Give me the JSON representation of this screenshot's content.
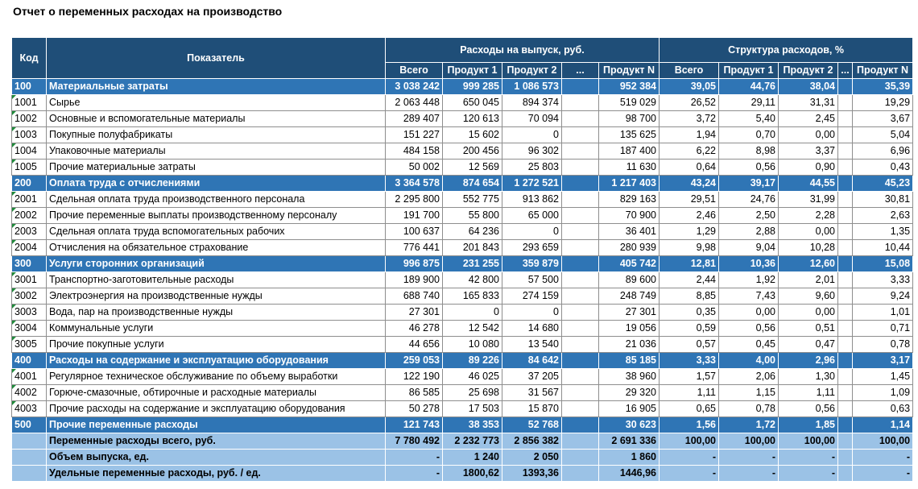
{
  "title": "Отчет о переменных расходах на производство",
  "table": {
    "header": {
      "code": "Код",
      "indicator": "Показатель",
      "costs_group": "Расходы на выпуск, руб.",
      "structure_group": "Структура расходов, %",
      "costs_columns": [
        "Всего",
        "Продукт 1",
        "Продукт 2",
        "...",
        "Продукт N"
      ],
      "structure_columns": [
        "Всего",
        "Продукт 1",
        "Продукт 2",
        "...",
        "Продукт N"
      ]
    },
    "rows": [
      {
        "kind": "group",
        "code": "100",
        "name": "Материальные затраты",
        "values": [
          "3 038 242",
          "999 285",
          "1 086 573",
          "952 384",
          "39,05",
          "44,76",
          "38,04",
          "35,39"
        ]
      },
      {
        "kind": "item",
        "code": "1001",
        "name": "Сырье",
        "values": [
          "2 063 448",
          "650 045",
          "894 374",
          "519 029",
          "26,52",
          "29,11",
          "31,31",
          "19,29"
        ]
      },
      {
        "kind": "item",
        "code": "1002",
        "name": "Основные и вспомогательные материалы",
        "values": [
          "289 407",
          "120 613",
          "70 094",
          "98 700",
          "3,72",
          "5,40",
          "2,45",
          "3,67"
        ]
      },
      {
        "kind": "item",
        "code": "1003",
        "name": "Покупные полуфабрикаты",
        "values": [
          "151 227",
          "15 602",
          "0",
          "135 625",
          "1,94",
          "0,70",
          "0,00",
          "5,04"
        ]
      },
      {
        "kind": "item",
        "code": "1004",
        "name": "Упаковочные материалы",
        "values": [
          "484 158",
          "200 456",
          "96 302",
          "187 400",
          "6,22",
          "8,98",
          "3,37",
          "6,96"
        ]
      },
      {
        "kind": "item",
        "code": "1005",
        "name": "Прочие материальные затраты",
        "values": [
          "50 002",
          "12 569",
          "25 803",
          "11 630",
          "0,64",
          "0,56",
          "0,90",
          "0,43"
        ]
      },
      {
        "kind": "group",
        "code": "200",
        "name": "Оплата труда с отчислениями",
        "values": [
          "3 364 578",
          "874 654",
          "1 272 521",
          "1 217 403",
          "43,24",
          "39,17",
          "44,55",
          "45,23"
        ]
      },
      {
        "kind": "item",
        "code": "2001",
        "name": "Сдельная оплата труда производственного персонала",
        "values": [
          "2 295 800",
          "552 775",
          "913 862",
          "829 163",
          "29,51",
          "24,76",
          "31,99",
          "30,81"
        ]
      },
      {
        "kind": "item",
        "code": "2002",
        "name": "Прочие переменные выплаты производственному персоналу",
        "values": [
          "191 700",
          "55 800",
          "65 000",
          "70 900",
          "2,46",
          "2,50",
          "2,28",
          "2,63"
        ]
      },
      {
        "kind": "item",
        "code": "2003",
        "name": "Сдельная оплата труда вспомогательных рабочих",
        "values": [
          "100 637",
          "64 236",
          "0",
          "36 401",
          "1,29",
          "2,88",
          "0,00",
          "1,35"
        ]
      },
      {
        "kind": "item",
        "code": "2004",
        "name": "Отчисления на обязательное страхование",
        "values": [
          "776 441",
          "201 843",
          "293 659",
          "280 939",
          "9,98",
          "9,04",
          "10,28",
          "10,44"
        ]
      },
      {
        "kind": "group",
        "code": "300",
        "name": "Услуги сторонних организаций",
        "values": [
          "996 875",
          "231 255",
          "359 879",
          "405 742",
          "12,81",
          "10,36",
          "12,60",
          "15,08"
        ]
      },
      {
        "kind": "item",
        "code": "3001",
        "name": "Транспортно-заготовительные расходы",
        "values": [
          "189 900",
          "42 800",
          "57 500",
          "89 600",
          "2,44",
          "1,92",
          "2,01",
          "3,33"
        ]
      },
      {
        "kind": "item",
        "code": "3002",
        "name": "Электроэнергия на производственные нужды",
        "values": [
          "688 740",
          "165 833",
          "274 159",
          "248 749",
          "8,85",
          "7,43",
          "9,60",
          "9,24"
        ]
      },
      {
        "kind": "item",
        "code": "3003",
        "name": "Вода, пар на производственные нужды",
        "values": [
          "27 301",
          "0",
          "0",
          "27 301",
          "0,35",
          "0,00",
          "0,00",
          "1,01"
        ]
      },
      {
        "kind": "item",
        "code": "3004",
        "name": "Коммунальные услуги",
        "values": [
          "46 278",
          "12 542",
          "14 680",
          "19 056",
          "0,59",
          "0,56",
          "0,51",
          "0,71"
        ]
      },
      {
        "kind": "item",
        "code": "3005",
        "name": "Прочие покупные услуги",
        "values": [
          "44 656",
          "10 080",
          "13 540",
          "21 036",
          "0,57",
          "0,45",
          "0,47",
          "0,78"
        ]
      },
      {
        "kind": "group",
        "code": "400",
        "name": "Расходы на содержание и эксплуатацию оборудования",
        "values": [
          "259 053",
          "89 226",
          "84 642",
          "85 185",
          "3,33",
          "4,00",
          "2,96",
          "3,17"
        ]
      },
      {
        "kind": "item",
        "code": "4001",
        "name": "Регулярное техническое обслуживание по объему выработки",
        "values": [
          "122 190",
          "46 025",
          "37 205",
          "38 960",
          "1,57",
          "2,06",
          "1,30",
          "1,45"
        ]
      },
      {
        "kind": "item",
        "code": "4002",
        "name": "Горюче-смазочные, обтирочные и расходные материалы",
        "values": [
          "86 585",
          "25 698",
          "31 567",
          "29 320",
          "1,11",
          "1,15",
          "1,11",
          "1,09"
        ]
      },
      {
        "kind": "item",
        "code": "4003",
        "name": "Прочие расходы на содержание и эксплуатацию оборудования",
        "values": [
          "50 278",
          "17 503",
          "15 870",
          "16 905",
          "0,65",
          "0,78",
          "0,56",
          "0,63"
        ]
      },
      {
        "kind": "group",
        "code": "500",
        "name": "Прочие переменные расходы",
        "values": [
          "121 743",
          "38 353",
          "52 768",
          "30 623",
          "1,56",
          "1,72",
          "1,85",
          "1,14"
        ]
      },
      {
        "kind": "total",
        "name": "Переменные расходы всего, руб.",
        "values": [
          "7 780 492",
          "2 232 773",
          "2 856 382",
          "2 691 336",
          "100,00",
          "100,00",
          "100,00",
          "100,00"
        ]
      },
      {
        "kind": "total",
        "name": "Объем выпуска, ед.",
        "values": [
          "-",
          "1 240",
          "2 050",
          "1 860",
          "-",
          "-",
          "-",
          "-"
        ]
      },
      {
        "kind": "total",
        "name": "Удельные переменные расходы, руб. / ед.",
        "values": [
          "-",
          "1800,62",
          "1393,36",
          "1446,96",
          "-",
          "-",
          "-",
          "-"
        ]
      }
    ]
  }
}
